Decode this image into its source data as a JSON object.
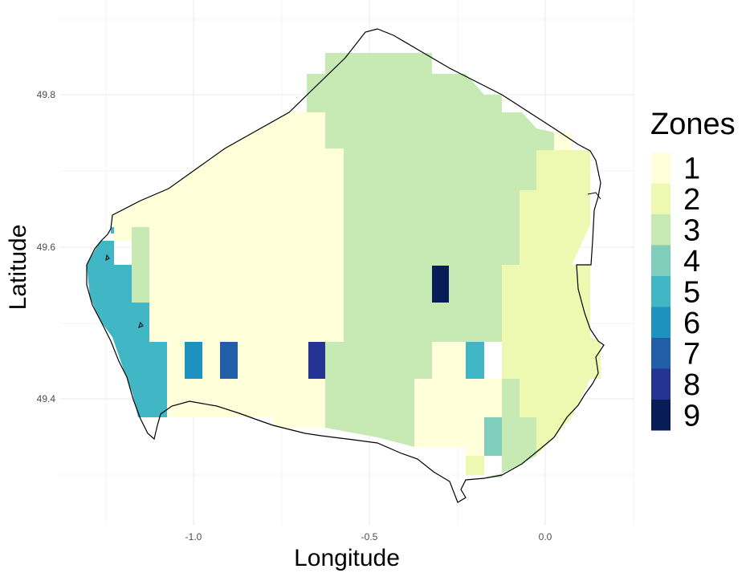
{
  "axes": {
    "x_title": "Longitude",
    "y_title": "Latitude",
    "x_ticks": [
      "-1.0",
      "-0.5",
      "0.0"
    ],
    "y_ticks": [
      "49.4",
      "49.6",
      "49.8"
    ]
  },
  "legend": {
    "title": "Zones",
    "items": [
      {
        "label": "1",
        "color": "#ffffd9"
      },
      {
        "label": "2",
        "color": "#edf8b1"
      },
      {
        "label": "3",
        "color": "#c7e9b4"
      },
      {
        "label": "4",
        "color": "#7fcdbb"
      },
      {
        "label": "5",
        "color": "#41b6c4"
      },
      {
        "label": "6",
        "color": "#1d91c0"
      },
      {
        "label": "7",
        "color": "#225ea8"
      },
      {
        "label": "8",
        "color": "#253494"
      },
      {
        "label": "9",
        "color": "#081d58"
      }
    ]
  },
  "chart_data": {
    "type": "heatmap",
    "title": "",
    "xlabel": "Longitude",
    "ylabel": "Latitude",
    "x_ticks": [
      -1.0,
      -0.5,
      0.0
    ],
    "y_ticks": [
      49.4,
      49.6,
      49.8
    ],
    "xlim": [
      -1.4,
      0.25
    ],
    "ylim": [
      49.25,
      49.89
    ],
    "legend_position": "right",
    "grid": true,
    "zones": [
      1,
      2,
      3,
      4,
      5,
      6,
      7,
      8,
      9
    ]
  }
}
